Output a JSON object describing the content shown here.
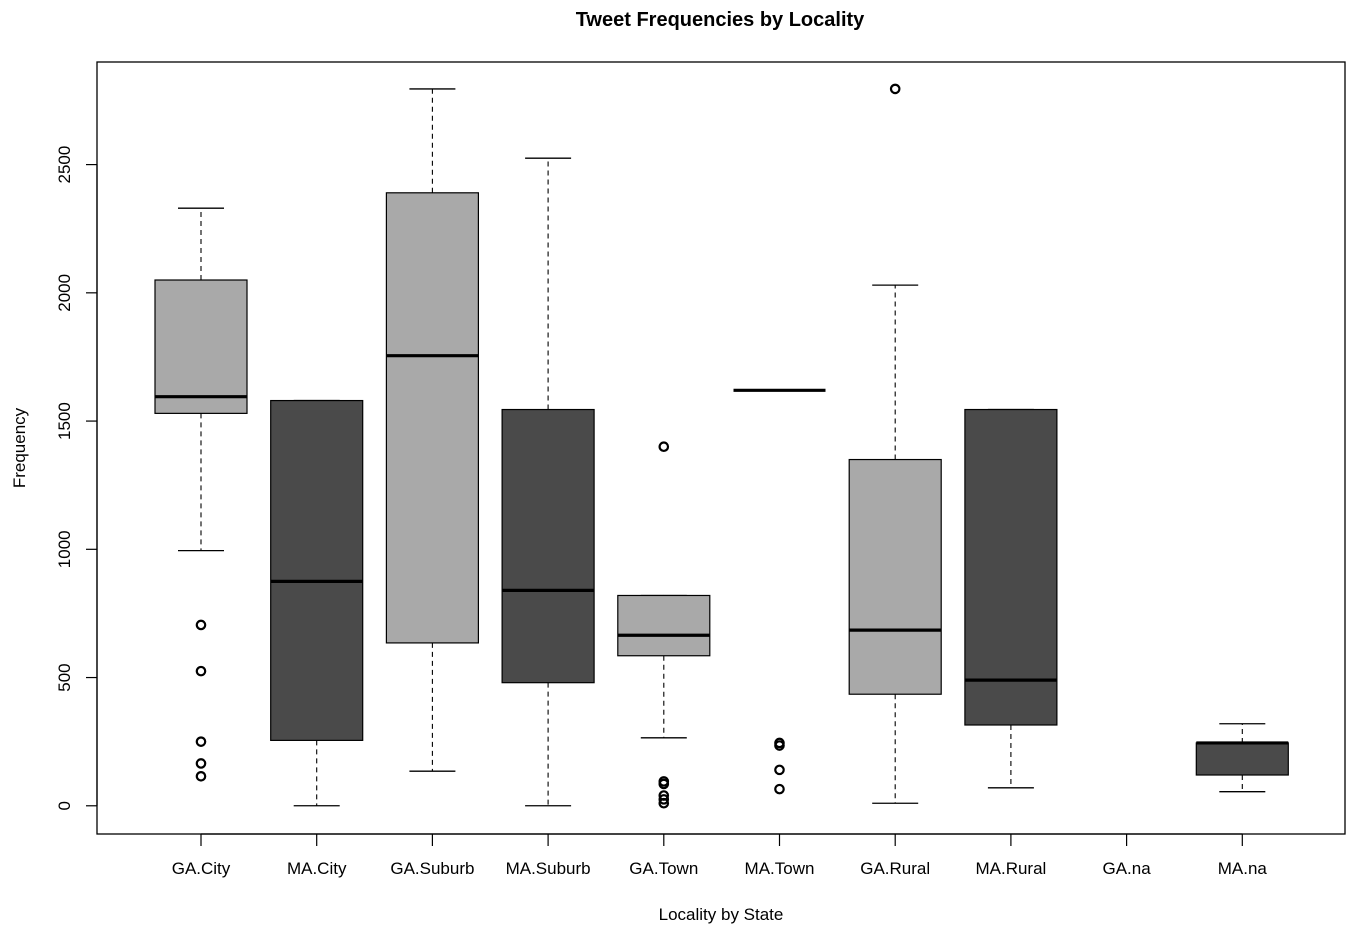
{
  "chart_data": {
    "type": "boxplot",
    "title": "Tweet Frequencies by Locality",
    "xlabel": "Locality by State",
    "ylabel": "Frequency",
    "ylim": [
      -110,
      2900
    ],
    "yticks": [
      0,
      500,
      1000,
      1500,
      2000,
      2500
    ],
    "grid": false,
    "legend": "none",
    "colors": {
      "GA": "#a9a9a9",
      "MA": "#4a4a4a",
      "stroke": "#000000"
    },
    "categories": [
      "GA.City",
      "MA.City",
      "GA.Suburb",
      "MA.Suburb",
      "GA.Town",
      "MA.Town",
      "GA.Rural",
      "MA.Rural",
      "GA.na",
      "MA.na"
    ],
    "boxes": [
      {
        "label": "GA.City",
        "group": "GA",
        "whisker_low": 995,
        "q1": 1530,
        "median": 1595,
        "q3": 2050,
        "whisker_high": 2330,
        "outliers": [
          705,
          525,
          250,
          165,
          115
        ]
      },
      {
        "label": "MA.City",
        "group": "MA",
        "whisker_low": 0,
        "q1": 255,
        "median": 875,
        "q3": 1580,
        "whisker_high": 1580,
        "outliers": []
      },
      {
        "label": "GA.Suburb",
        "group": "GA",
        "whisker_low": 135,
        "q1": 635,
        "median": 1755,
        "q3": 2390,
        "whisker_high": 2795,
        "outliers": []
      },
      {
        "label": "MA.Suburb",
        "group": "MA",
        "whisker_low": 0,
        "q1": 480,
        "median": 840,
        "q3": 1545,
        "whisker_high": 2525,
        "outliers": []
      },
      {
        "label": "GA.Town",
        "group": "GA",
        "whisker_low": 265,
        "q1": 585,
        "median": 665,
        "q3": 820,
        "whisker_high": 820,
        "outliers": [
          1400,
          95,
          85,
          40,
          25,
          10
        ]
      },
      {
        "label": "MA.Town",
        "group": "MA",
        "whisker_low": 1620,
        "q1": 1620,
        "median": 1620,
        "q3": 1620,
        "whisker_high": 1620,
        "outliers": [
          245,
          235,
          140,
          65
        ]
      },
      {
        "label": "GA.Rural",
        "group": "GA",
        "whisker_low": 10,
        "q1": 435,
        "median": 685,
        "q3": 1350,
        "whisker_high": 2030,
        "outliers": [
          2795
        ]
      },
      {
        "label": "MA.Rural",
        "group": "MA",
        "whisker_low": 70,
        "q1": 315,
        "median": 490,
        "q3": 1545,
        "whisker_high": 1545,
        "outliers": []
      },
      {
        "label": "GA.na",
        "group": "GA",
        "empty": true
      },
      {
        "label": "MA.na",
        "group": "MA",
        "whisker_low": 55,
        "q1": 120,
        "median": 245,
        "q3": 245,
        "whisker_high": 320,
        "outliers": []
      }
    ]
  }
}
